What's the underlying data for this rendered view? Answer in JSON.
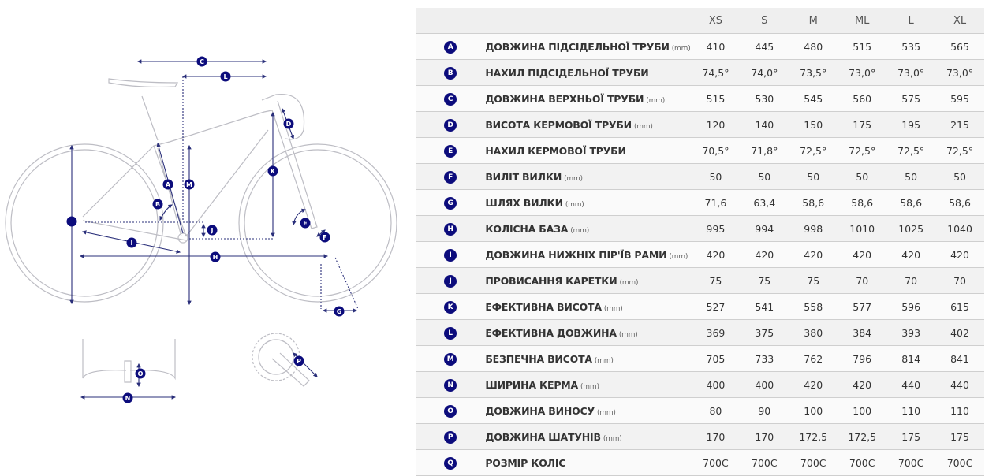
{
  "colors": {
    "badge": "#0c0c7c",
    "dimension_line": "#2a2f7a",
    "bike_outline": "#bdbdc4",
    "header_bg": "#efefef"
  },
  "sizes": [
    "XS",
    "S",
    "M",
    "ML",
    "L",
    "XL"
  ],
  "rows": [
    {
      "letter": "A",
      "name": "ДОВЖИНА ПІДСІДЕЛЬНОЇ ТРУБИ",
      "unit": "(mm)",
      "values": [
        "410",
        "445",
        "480",
        "515",
        "535",
        "565"
      ]
    },
    {
      "letter": "B",
      "name": "НАХИЛ ПІДСІДЕЛЬНОЇ ТРУБИ",
      "unit": "",
      "values": [
        "74,5°",
        "74,0°",
        "73,5°",
        "73,0°",
        "73,0°",
        "73,0°"
      ]
    },
    {
      "letter": "C",
      "name": "ДОВЖИНА ВЕРХНЬОЇ ТРУБИ",
      "unit": "(mm)",
      "values": [
        "515",
        "530",
        "545",
        "560",
        "575",
        "595"
      ]
    },
    {
      "letter": "D",
      "name": "ВИСОТА КЕРМОВОЇ ТРУБИ",
      "unit": "(mm)",
      "values": [
        "120",
        "140",
        "150",
        "175",
        "195",
        "215"
      ]
    },
    {
      "letter": "E",
      "name": "НАХИЛ КЕРМОВОЇ ТРУБИ",
      "unit": "",
      "values": [
        "70,5°",
        "71,8°",
        "72,5°",
        "72,5°",
        "72,5°",
        "72,5°"
      ]
    },
    {
      "letter": "F",
      "name": "ВИЛІТ ВИЛКИ",
      "unit": "(mm)",
      "values": [
        "50",
        "50",
        "50",
        "50",
        "50",
        "50"
      ]
    },
    {
      "letter": "G",
      "name": "ШЛЯХ ВИЛКИ",
      "unit": "(mm)",
      "values": [
        "71,6",
        "63,4",
        "58,6",
        "58,6",
        "58,6",
        "58,6"
      ]
    },
    {
      "letter": "H",
      "name": "КОЛІСНА БАЗА",
      "unit": "(mm)",
      "values": [
        "995",
        "994",
        "998",
        "1010",
        "1025",
        "1040"
      ]
    },
    {
      "letter": "I",
      "name": "ДОВЖИНА НИЖНІХ ПІР'ЇВ РАМИ",
      "unit": "(mm)",
      "values": [
        "420",
        "420",
        "420",
        "420",
        "420",
        "420"
      ]
    },
    {
      "letter": "J",
      "name": "ПРОВИСАННЯ КАРЕТКИ",
      "unit": "(mm)",
      "values": [
        "75",
        "75",
        "75",
        "70",
        "70",
        "70"
      ]
    },
    {
      "letter": "K",
      "name": "ЕФЕКТИВНА ВИСОТА",
      "unit": "(mm)",
      "values": [
        "527",
        "541",
        "558",
        "577",
        "596",
        "615"
      ]
    },
    {
      "letter": "L",
      "name": "ЕФЕКТИВНА ДОВЖИНА",
      "unit": "(mm)",
      "values": [
        "369",
        "375",
        "380",
        "384",
        "393",
        "402"
      ]
    },
    {
      "letter": "M",
      "name": "БЕЗПЕЧНА ВИСОТА",
      "unit": "(mm)",
      "values": [
        "705",
        "733",
        "762",
        "796",
        "814",
        "841"
      ]
    },
    {
      "letter": "N",
      "name": "ШИРИНА КЕРМА",
      "unit": "(mm)",
      "values": [
        "400",
        "400",
        "420",
        "420",
        "440",
        "440"
      ]
    },
    {
      "letter": "O",
      "name": "ДОВЖИНА ВИНОСУ",
      "unit": "(mm)",
      "values": [
        "80",
        "90",
        "100",
        "100",
        "110",
        "110"
      ]
    },
    {
      "letter": "P",
      "name": "ДОВЖИНА ШАТУНІВ",
      "unit": "(mm)",
      "values": [
        "170",
        "170",
        "172,5",
        "172,5",
        "175",
        "175"
      ]
    },
    {
      "letter": "Q",
      "name": "РОЗМІР КОЛІС",
      "unit": "",
      "values": [
        "700C",
        "700C",
        "700C",
        "700C",
        "700C",
        "700C"
      ]
    }
  ]
}
